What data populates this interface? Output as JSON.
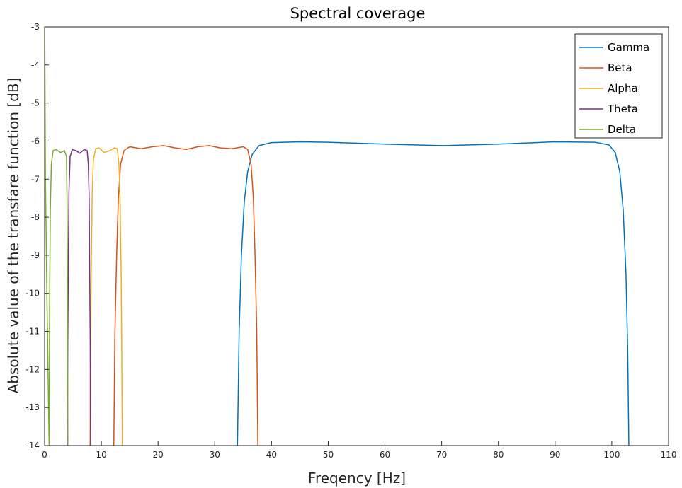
{
  "chart_data": {
    "type": "line",
    "title": "Spectral coverage",
    "xlabel": "Freqency [Hz]",
    "ylabel": "Absolute value of the transfare function [dB]",
    "xlim": [
      0,
      110
    ],
    "ylim": [
      -14,
      -3
    ],
    "xticks": [
      0,
      10,
      20,
      30,
      40,
      50,
      60,
      70,
      80,
      90,
      100,
      110
    ],
    "yticks": [
      -14,
      -13,
      -12,
      -11,
      -10,
      -9,
      -8,
      -7,
      -6,
      -5,
      -4,
      -3
    ],
    "grid": false,
    "legend_position": "top-right",
    "series": [
      {
        "name": "Gamma",
        "color": "#0072bd",
        "points": [
          [
            34.0,
            -14
          ],
          [
            34.3,
            -11
          ],
          [
            34.7,
            -9
          ],
          [
            35.2,
            -7.6
          ],
          [
            35.8,
            -6.8
          ],
          [
            36.6,
            -6.35
          ],
          [
            37.8,
            -6.12
          ],
          [
            40,
            -6.04
          ],
          [
            45,
            -6.02
          ],
          [
            50,
            -6.03
          ],
          [
            60,
            -6.08
          ],
          [
            70,
            -6.12
          ],
          [
            80,
            -6.08
          ],
          [
            90,
            -6.02
          ],
          [
            97,
            -6.03
          ],
          [
            99.5,
            -6.1
          ],
          [
            100.6,
            -6.3
          ],
          [
            101.4,
            -6.8
          ],
          [
            102,
            -7.8
          ],
          [
            102.5,
            -9.5
          ],
          [
            102.8,
            -11.5
          ],
          [
            103.0,
            -14
          ]
        ]
      },
      {
        "name": "Beta",
        "color": "#d95319",
        "points": [
          [
            12.2,
            -14
          ],
          [
            12.4,
            -11
          ],
          [
            12.7,
            -9
          ],
          [
            13.0,
            -7.5
          ],
          [
            13.4,
            -6.6
          ],
          [
            14.0,
            -6.25
          ],
          [
            15,
            -6.15
          ],
          [
            17,
            -6.2
          ],
          [
            19,
            -6.15
          ],
          [
            21,
            -6.12
          ],
          [
            23,
            -6.18
          ],
          [
            25,
            -6.22
          ],
          [
            27,
            -6.15
          ],
          [
            29,
            -6.12
          ],
          [
            31,
            -6.18
          ],
          [
            33,
            -6.2
          ],
          [
            35,
            -6.15
          ],
          [
            35.8,
            -6.22
          ],
          [
            36.4,
            -6.6
          ],
          [
            36.8,
            -7.5
          ],
          [
            37.1,
            -9
          ],
          [
            37.4,
            -11
          ],
          [
            37.6,
            -14
          ]
        ]
      },
      {
        "name": "Alpha",
        "color": "#edb120",
        "points": [
          [
            8.0,
            -14
          ],
          [
            8.1,
            -11
          ],
          [
            8.25,
            -9
          ],
          [
            8.4,
            -7.3
          ],
          [
            8.6,
            -6.5
          ],
          [
            9.0,
            -6.2
          ],
          [
            9.6,
            -6.18
          ],
          [
            10.5,
            -6.3
          ],
          [
            11.5,
            -6.25
          ],
          [
            12.3,
            -6.18
          ],
          [
            12.8,
            -6.2
          ],
          [
            13.1,
            -6.6
          ],
          [
            13.3,
            -7.5
          ],
          [
            13.5,
            -9.5
          ],
          [
            13.6,
            -11.5
          ],
          [
            13.7,
            -14
          ]
        ]
      },
      {
        "name": "Theta",
        "color": "#7e2f8e",
        "points": [
          [
            4.0,
            -14
          ],
          [
            4.1,
            -11
          ],
          [
            4.2,
            -9
          ],
          [
            4.3,
            -7.3
          ],
          [
            4.5,
            -6.4
          ],
          [
            4.9,
            -6.22
          ],
          [
            5.5,
            -6.25
          ],
          [
            6.2,
            -6.32
          ],
          [
            7.0,
            -6.22
          ],
          [
            7.5,
            -6.25
          ],
          [
            7.7,
            -6.6
          ],
          [
            7.85,
            -7.5
          ],
          [
            7.95,
            -9.5
          ],
          [
            8.05,
            -11.5
          ],
          [
            8.1,
            -14
          ]
        ]
      },
      {
        "name": "Delta",
        "color": "#77ac30",
        "points": [
          [
            0.02,
            -3
          ],
          [
            0.15,
            -7
          ],
          [
            0.4,
            -10
          ],
          [
            0.8,
            -14
          ],
          [
            0.9,
            -10
          ],
          [
            1.0,
            -7.8
          ],
          [
            1.2,
            -6.6
          ],
          [
            1.5,
            -6.25
          ],
          [
            2.0,
            -6.22
          ],
          [
            2.8,
            -6.3
          ],
          [
            3.5,
            -6.25
          ],
          [
            3.85,
            -6.4
          ],
          [
            3.95,
            -7.5
          ],
          [
            4.02,
            -9.5
          ],
          [
            4.05,
            -11.5
          ],
          [
            4.1,
            -14
          ]
        ]
      }
    ]
  }
}
